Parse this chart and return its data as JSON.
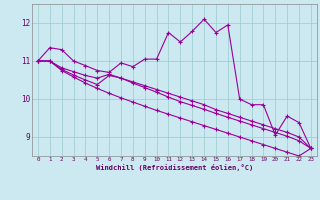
{
  "xlabel": "Windchill (Refroidissement éolien,°C)",
  "bg_color": "#cce8f0",
  "line_color": "#990099",
  "grid_color": "#99cccc",
  "x_values": [
    0,
    1,
    2,
    3,
    4,
    5,
    6,
    7,
    8,
    9,
    10,
    11,
    12,
    13,
    14,
    15,
    16,
    17,
    18,
    19,
    20,
    21,
    22,
    23
  ],
  "series1": [
    11.0,
    11.35,
    11.3,
    11.0,
    10.88,
    10.75,
    10.7,
    10.95,
    10.85,
    11.05,
    11.05,
    11.75,
    11.5,
    11.78,
    12.1,
    11.75,
    11.95,
    10.0,
    9.85,
    9.85,
    9.05,
    9.55,
    9.38,
    8.7
  ],
  "series2": [
    11.0,
    11.0,
    10.82,
    10.72,
    10.62,
    10.55,
    10.65,
    10.55,
    10.45,
    10.35,
    10.25,
    10.15,
    10.05,
    9.95,
    9.85,
    9.72,
    9.62,
    9.52,
    9.42,
    9.32,
    9.22,
    9.12,
    9.0,
    8.7
  ],
  "series3": [
    11.0,
    11.0,
    10.78,
    10.63,
    10.5,
    10.38,
    10.62,
    10.55,
    10.42,
    10.3,
    10.18,
    10.05,
    9.93,
    9.83,
    9.73,
    9.62,
    9.52,
    9.42,
    9.32,
    9.22,
    9.12,
    9.02,
    8.9,
    8.7
  ],
  "series4": [
    11.0,
    11.0,
    10.75,
    10.58,
    10.42,
    10.28,
    10.15,
    10.03,
    9.92,
    9.81,
    9.7,
    9.6,
    9.5,
    9.4,
    9.3,
    9.2,
    9.1,
    9.0,
    8.9,
    8.8,
    8.7,
    8.6,
    8.5,
    8.7
  ],
  "ylim": [
    8.5,
    12.5
  ],
  "yticks": [
    9,
    10,
    11,
    12
  ],
  "xticks": [
    0,
    1,
    2,
    3,
    4,
    5,
    6,
    7,
    8,
    9,
    10,
    11,
    12,
    13,
    14,
    15,
    16,
    17,
    18,
    19,
    20,
    21,
    22,
    23
  ]
}
